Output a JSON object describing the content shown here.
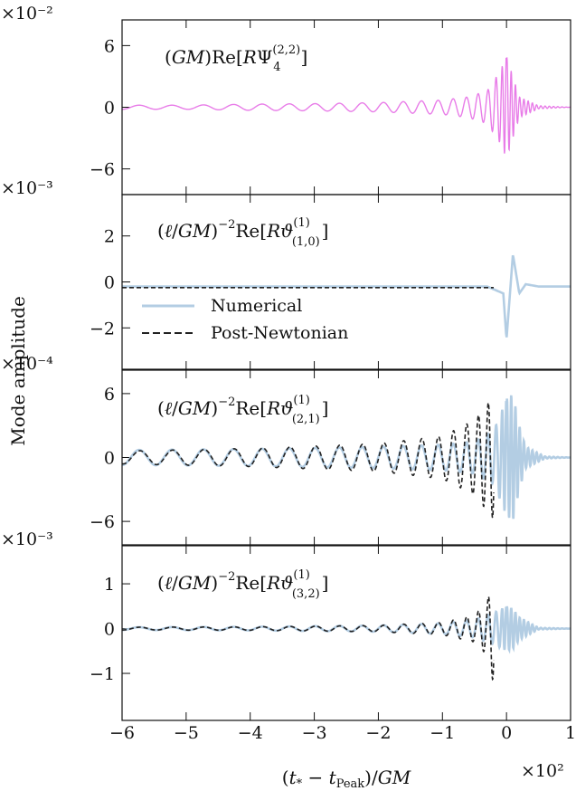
{
  "chart_data": {
    "type": "line",
    "ylabel": "Mode amplitude",
    "xlabel": "(t* − tPeak)/GM",
    "x_multiplier": "×10²",
    "xlim": [
      -6,
      1
    ],
    "xticks": [
      -6,
      -5,
      -4,
      -3,
      -2,
      -1,
      0,
      1
    ],
    "xtick_labels": [
      "−6",
      "−5",
      "−4",
      "−3",
      "−2",
      "−1",
      "0",
      "1"
    ],
    "legend": {
      "location": "panel 2, lower-left",
      "entries": [
        {
          "name": "Numerical",
          "color": "#b3cde3",
          "style": "solid"
        },
        {
          "name": "Post-Newtonian",
          "color": "#222222",
          "style": "dashed"
        }
      ]
    },
    "panels": [
      {
        "label": "(GM)Re[RΨ4^(2,2)]",
        "multiplier": "×10⁻²",
        "ylim": [
          -8.5,
          8.5
        ],
        "yticks": [
          -6,
          0,
          6
        ],
        "ytick_labels": [
          "−6",
          "0",
          "6"
        ],
        "series": [
          {
            "name": "Numerical",
            "color": "#e87ce8",
            "x": [
              -6.0,
              -5.0,
              -4.0,
              -3.0,
              -2.0,
              -1.0,
              -0.6,
              -0.3,
              -0.1,
              0.0,
              0.1,
              0.2,
              0.5,
              1.0
            ],
            "amplitude": [
              0.2,
              0.2,
              0.3,
              0.35,
              0.45,
              0.7,
              1.0,
              1.6,
              3.5,
              5.0,
              3.0,
              1.0,
              0.15,
              0.0
            ]
          }
        ]
      },
      {
        "label": "(ℓ/GM)⁻²Re[Rϑ^(1)_(1,0)]",
        "multiplier": "×10⁻³",
        "ylim": [
          -3.8,
          3.8
        ],
        "yticks": [
          -2,
          0,
          2
        ],
        "ytick_labels": [
          "−2",
          "0",
          "2"
        ],
        "series": [
          {
            "name": "Numerical",
            "color": "#b3cde3",
            "x": [
              -6.0,
              -1.0,
              -0.3,
              -0.05,
              0.0,
              0.1,
              0.2,
              0.3,
              0.5,
              1.0
            ],
            "y": [
              -0.2,
              -0.2,
              -0.2,
              -0.5,
              -2.5,
              1.2,
              -0.5,
              -0.1,
              -0.2,
              -0.2
            ]
          },
          {
            "name": "Post-Newtonian",
            "color": "#222222",
            "x": [
              -6.0,
              -3.0,
              -0.2
            ],
            "y": [
              -0.25,
              -0.25,
              -0.25
            ]
          }
        ]
      },
      {
        "label": "(ℓ/GM)⁻²Re[Rϑ^(1)_(2,1)]",
        "multiplier": "×10⁻⁴",
        "ylim": [
          -8.2,
          8.2
        ],
        "yticks": [
          -6,
          0,
          6
        ],
        "ytick_labels": [
          "−6",
          "0",
          "6"
        ],
        "series": [
          {
            "name": "Numerical",
            "color": "#b3cde3",
            "x": [
              -6.0,
              -4.0,
              -2.0,
              -1.0,
              -0.5,
              -0.2,
              0.0,
              0.1,
              0.2,
              0.3,
              0.6,
              1.0
            ],
            "amplitude": [
              0.7,
              0.8,
              1.0,
              1.2,
              1.5,
              2.5,
              5.5,
              6.0,
              3.0,
              1.0,
              0.1,
              0.0
            ]
          },
          {
            "name": "Post-Newtonian",
            "color": "#222222",
            "x": [
              -6.0,
              -4.0,
              -2.0,
              -1.0,
              -0.5,
              -0.2
            ],
            "amplitude": [
              0.6,
              0.85,
              1.3,
              2.0,
              3.5,
              5.8
            ]
          }
        ]
      },
      {
        "label": "(ℓ/GM)⁻²Re[Rϑ^(1)_(3,2)]",
        "multiplier": "×10⁻³",
        "ylim": [
          -2.05,
          1.85
        ],
        "yticks": [
          -1,
          0,
          1
        ],
        "ytick_labels": [
          "−1",
          "0",
          "1"
        ],
        "series": [
          {
            "name": "Numerical",
            "color": "#b3cde3",
            "x": [
              -6.0,
              -4.0,
              -2.0,
              -1.0,
              -0.5,
              -0.2,
              0.0,
              0.1,
              0.2,
              0.5,
              1.0
            ],
            "amplitude": [
              0.03,
              0.04,
              0.07,
              0.12,
              0.2,
              0.35,
              0.5,
              0.45,
              0.25,
              0.02,
              0.0
            ]
          },
          {
            "name": "Post-Newtonian",
            "color": "#222222",
            "x": [
              -6.0,
              -4.0,
              -2.0,
              -1.0,
              -0.5,
              -0.3,
              -0.2
            ],
            "amplitude": [
              0.03,
              0.04,
              0.07,
              0.14,
              0.3,
              0.6,
              1.25
            ]
          }
        ]
      }
    ]
  }
}
